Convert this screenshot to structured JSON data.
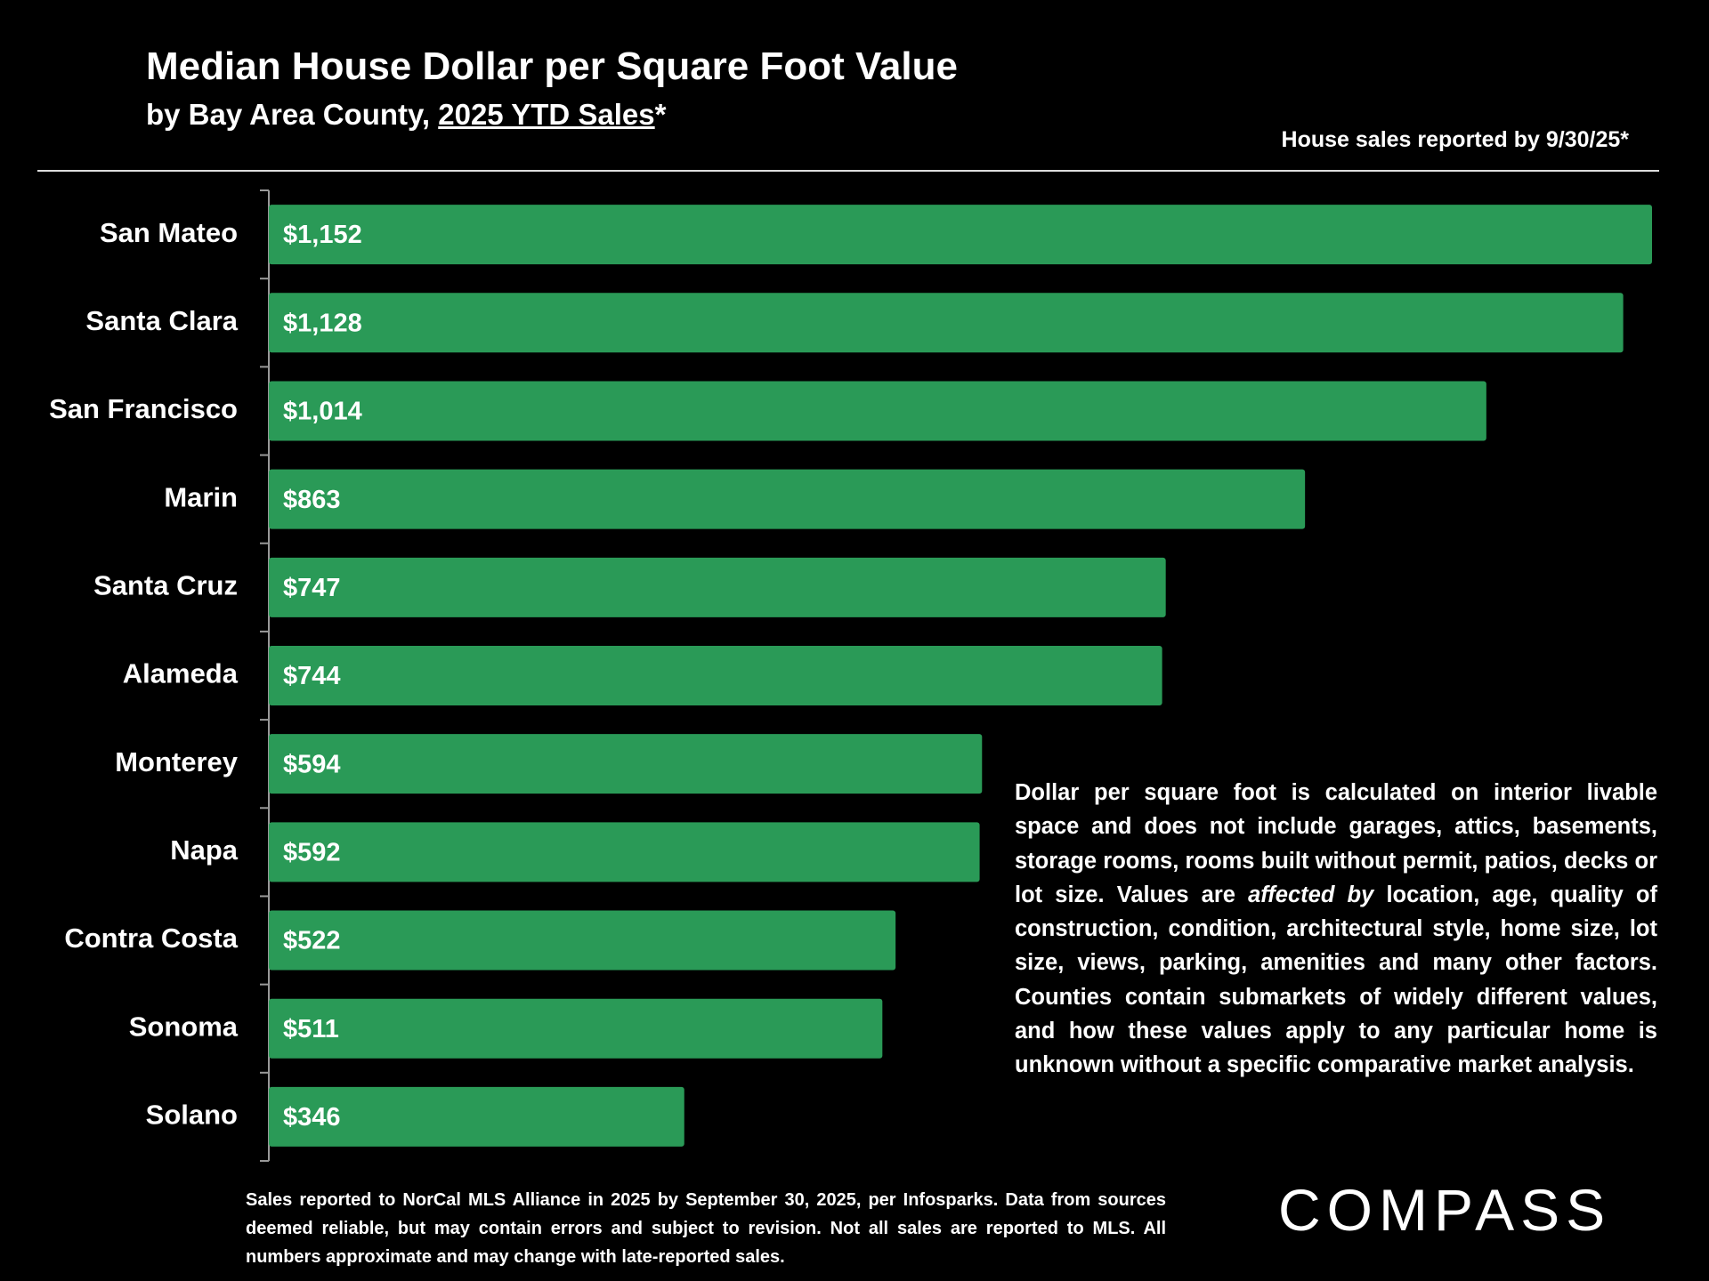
{
  "chart_data": {
    "type": "hbar",
    "title": "Median House Dollar per Square Foot Value",
    "subtitle": [
      "by Bay Area County, ",
      "2025 YTD Sales",
      "*"
    ],
    "annotation": "House sales reported by 9/30/25*",
    "categories": [
      "San Mateo",
      "Santa Clara",
      "San Francisco",
      "Marin",
      "Santa Cruz",
      "Alameda",
      "Monterey",
      "Napa",
      "Contra Costa",
      "Sonoma",
      "Solano"
    ],
    "values": [
      1152,
      1128,
      1014,
      863,
      747,
      744,
      594,
      592,
      522,
      511,
      346
    ],
    "value_labels": [
      "$1,152",
      "$1,128",
      "$1,014",
      "$863",
      "$747",
      "$744",
      "$594",
      "$592",
      "$522",
      "$511",
      "$346"
    ],
    "color": "#2a9a57",
    "note": [
      "Dollar per square foot is calculated on interior livable space and does not include garages, attics, basements, storage rooms, rooms built without permit, patios, decks or lot size. Values are ",
      "affected by",
      " location, age, quality of construction, condition, architectural style, home size, lot size, views, parking, amenities and many other factors. Counties contain submarkets of widely different values, and how these values apply to any particular home is unknown without a specific comparative market analysis."
    ],
    "footnote": "Sales reported to NorCal MLS Alliance in 2025 by September 30, 2025, per Infosparks. Data from sources deemed reliable, but may contain errors and subject to revision. Not all sales are reported to MLS. All numbers approximate and may change with late-reported sales.",
    "logo": "COMPASS"
  }
}
